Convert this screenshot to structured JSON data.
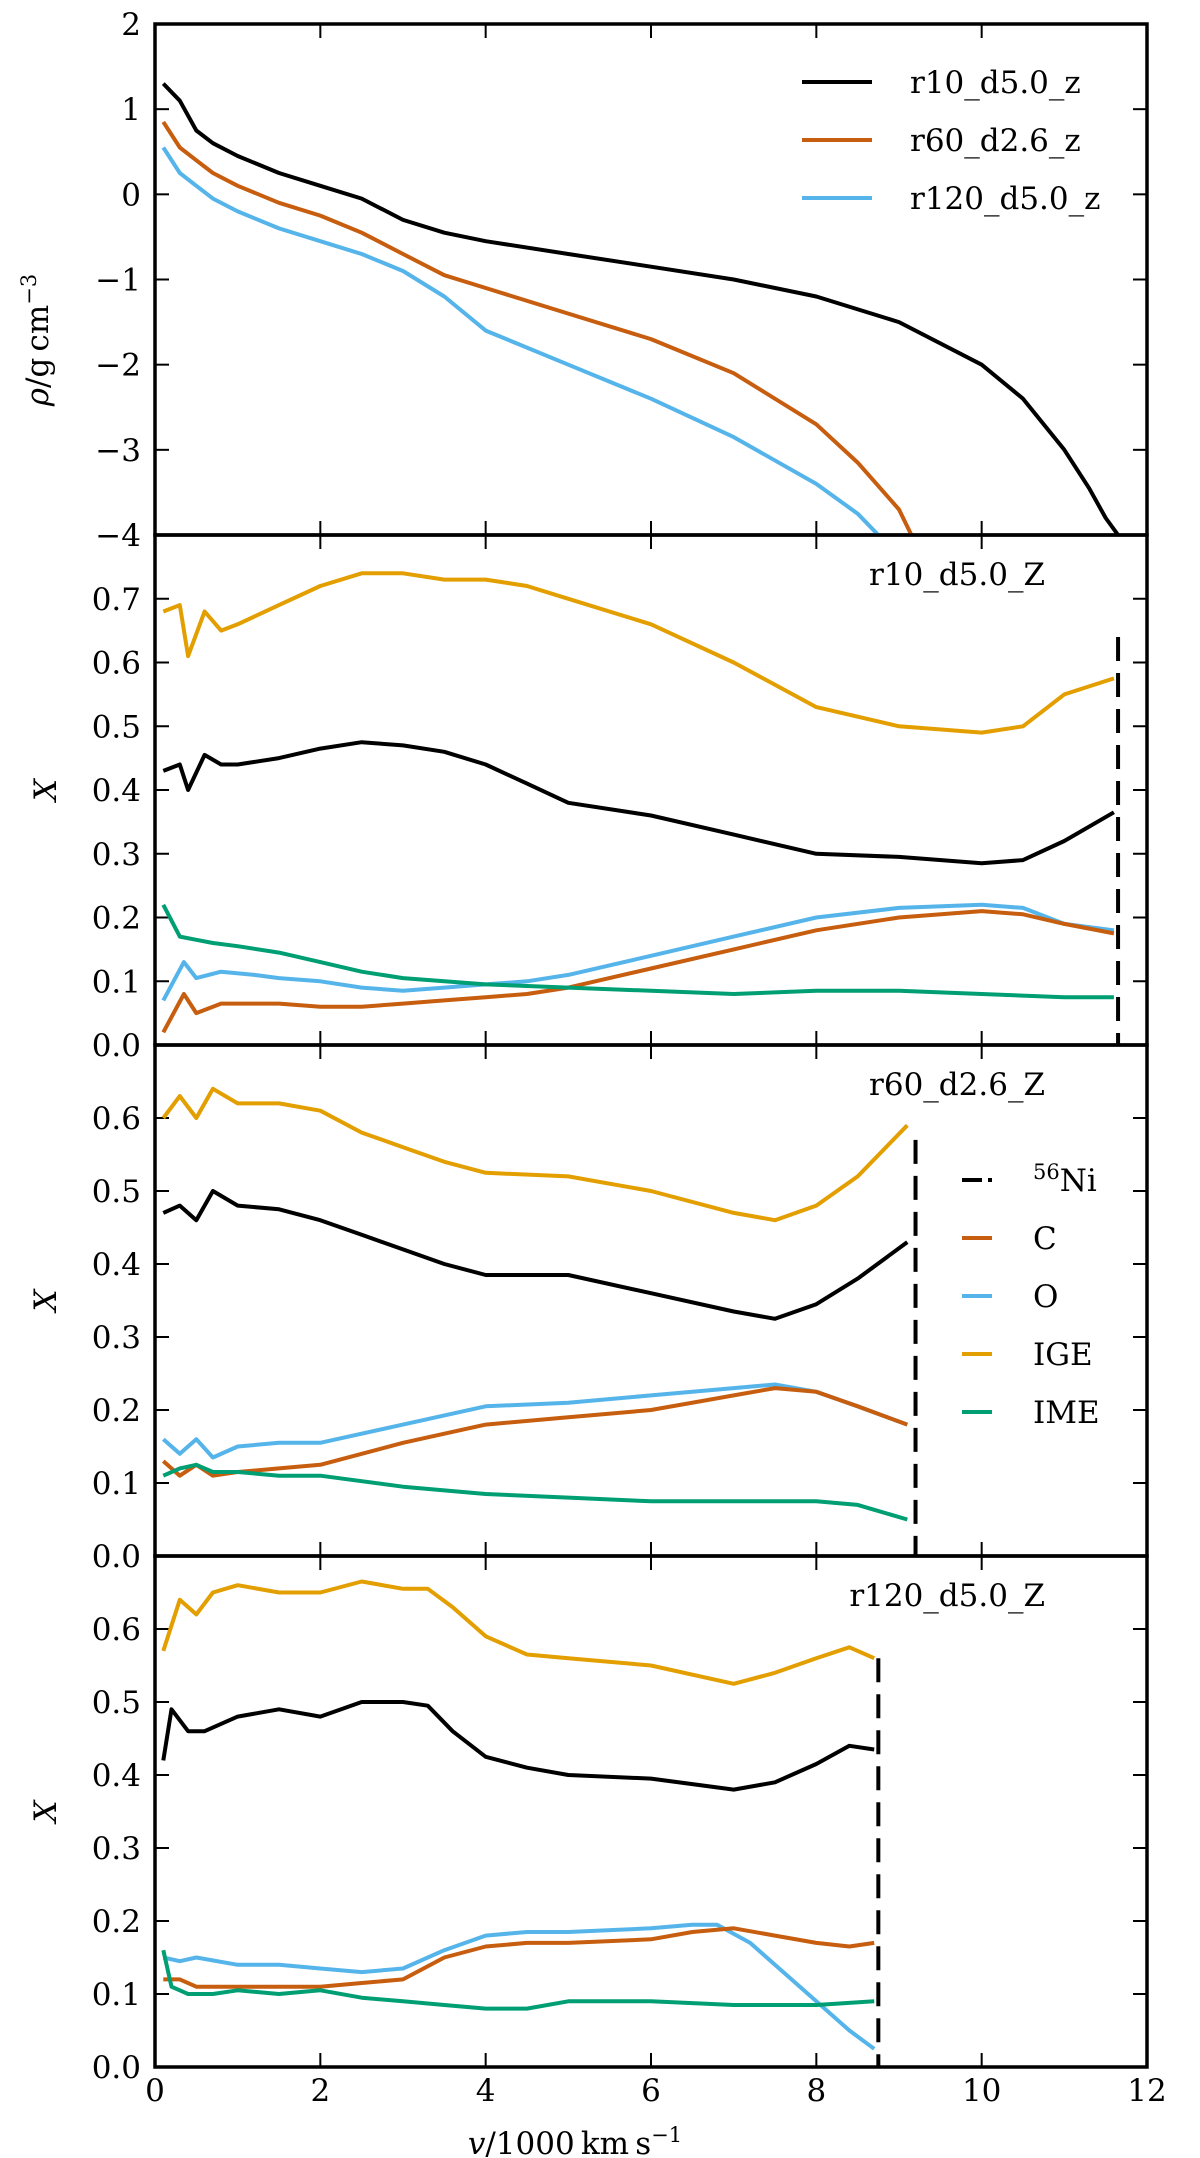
{
  "colors": {
    "black": "#000000",
    "C": "#c75d0e",
    "O": "#55b4e9",
    "IGE": "#e39e00",
    "IME": "#009e73"
  },
  "chart_data": {
    "type": "line",
    "shared_x": {
      "label": "v/1000 km s⁻¹",
      "label_prefix": "v",
      "label_mid": "/1000 km s",
      "label_sup": "−1",
      "range": [
        0,
        12
      ],
      "ticks": [
        "0",
        "2",
        "4",
        "6",
        "8",
        "10",
        "12"
      ]
    },
    "panels": [
      {
        "name": "density",
        "ylabel": "ρ/g cm⁻³",
        "ylabel_rho": "ρ",
        "ylabel_mid": "/g cm",
        "ylabel_sup": "−3",
        "ylim": [
          -4,
          2
        ],
        "yticks": [
          "2",
          "1",
          "0",
          "−1",
          "−2",
          "−3",
          "−4"
        ],
        "legend_position": "top-right",
        "series": [
          {
            "name": "r10_d5.0_z",
            "color": "#000000",
            "x": [
              0.1,
              0.3,
              0.5,
              0.7,
              1.0,
              1.5,
              2.0,
              2.5,
              3.0,
              3.5,
              4.0,
              5.0,
              6.0,
              7.0,
              8.0,
              9.0,
              10.0,
              10.5,
              11.0,
              11.3,
              11.5,
              11.65
            ],
            "y": [
              1.3,
              1.1,
              0.75,
              0.6,
              0.45,
              0.25,
              0.1,
              -0.05,
              -0.3,
              -0.45,
              -0.55,
              -0.7,
              -0.85,
              -1.0,
              -1.2,
              -1.5,
              -2.0,
              -2.4,
              -3.0,
              -3.45,
              -3.8,
              -4.0
            ]
          },
          {
            "name": "r60_d2.6_z",
            "color": "#c75d0e",
            "x": [
              0.1,
              0.3,
              0.5,
              0.7,
              1.0,
              1.5,
              2.0,
              2.5,
              3.0,
              3.5,
              4.0,
              5.0,
              6.0,
              7.0,
              8.0,
              8.5,
              9.0,
              9.15
            ],
            "y": [
              0.85,
              0.55,
              0.4,
              0.25,
              0.1,
              -0.1,
              -0.25,
              -0.45,
              -0.7,
              -0.95,
              -1.1,
              -1.4,
              -1.7,
              -2.1,
              -2.7,
              -3.15,
              -3.7,
              -4.0
            ]
          },
          {
            "name": "r120_d5.0_z",
            "color": "#55b4e9",
            "x": [
              0.1,
              0.3,
              0.5,
              0.7,
              1.0,
              1.5,
              2.0,
              2.5,
              3.0,
              3.5,
              4.0,
              5.0,
              6.0,
              7.0,
              8.0,
              8.5,
              8.75
            ],
            "y": [
              0.55,
              0.25,
              0.1,
              -0.05,
              -0.2,
              -0.4,
              -0.55,
              -0.7,
              -0.9,
              -1.2,
              -1.6,
              -2.0,
              -2.4,
              -2.85,
              -3.4,
              -3.75,
              -4.0
            ]
          }
        ]
      },
      {
        "name": "r10_d5.0_Z",
        "label": "r10_d5.0_Z",
        "ylabel": "X",
        "ylim": [
          0,
          0.8
        ],
        "yticks": [
          "0.7",
          "0.6",
          "0.5",
          "0.4",
          "0.3",
          "0.2",
          "0.1",
          "0.0"
        ],
        "ni56_x": 11.65,
        "ni56_top": 0.64,
        "series": [
          {
            "name": "IGE",
            "color": "#e39e00",
            "x": [
              0.1,
              0.3,
              0.4,
              0.6,
              0.8,
              1.0,
              1.5,
              2.0,
              2.5,
              3.0,
              3.5,
              4.0,
              4.5,
              5.0,
              6.0,
              7.0,
              8.0,
              9.0,
              10.0,
              10.5,
              11.0,
              11.6
            ],
            "y": [
              0.68,
              0.69,
              0.61,
              0.68,
              0.65,
              0.66,
              0.69,
              0.72,
              0.74,
              0.74,
              0.73,
              0.73,
              0.72,
              0.7,
              0.66,
              0.6,
              0.53,
              0.5,
              0.49,
              0.5,
              0.55,
              0.575
            ]
          },
          {
            "name": "56Ni",
            "color": "#000000",
            "x": [
              0.1,
              0.3,
              0.4,
              0.6,
              0.8,
              1.0,
              1.5,
              2.0,
              2.5,
              3.0,
              3.5,
              4.0,
              4.5,
              5.0,
              6.0,
              7.0,
              8.0,
              9.0,
              10.0,
              10.5,
              11.0,
              11.6
            ],
            "y": [
              0.43,
              0.44,
              0.4,
              0.455,
              0.44,
              0.44,
              0.45,
              0.465,
              0.475,
              0.47,
              0.46,
              0.44,
              0.41,
              0.38,
              0.36,
              0.33,
              0.3,
              0.295,
              0.285,
              0.29,
              0.32,
              0.365
            ]
          },
          {
            "name": "O",
            "color": "#55b4e9",
            "x": [
              0.1,
              0.35,
              0.5,
              0.8,
              1.2,
              1.5,
              2.0,
              2.5,
              3.0,
              3.5,
              4.0,
              4.5,
              5.0,
              6.0,
              7.0,
              8.0,
              9.0,
              10.0,
              10.5,
              11.0,
              11.6
            ],
            "y": [
              0.07,
              0.13,
              0.105,
              0.115,
              0.11,
              0.105,
              0.1,
              0.09,
              0.085,
              0.09,
              0.095,
              0.1,
              0.11,
              0.14,
              0.17,
              0.2,
              0.215,
              0.22,
              0.215,
              0.19,
              0.18
            ]
          },
          {
            "name": "C",
            "color": "#c75d0e",
            "x": [
              0.1,
              0.35,
              0.5,
              0.8,
              1.2,
              1.5,
              2.0,
              2.5,
              3.0,
              3.5,
              4.0,
              4.5,
              5.0,
              6.0,
              7.0,
              8.0,
              9.0,
              10.0,
              10.5,
              11.0,
              11.6
            ],
            "y": [
              0.02,
              0.08,
              0.05,
              0.065,
              0.065,
              0.065,
              0.06,
              0.06,
              0.065,
              0.07,
              0.075,
              0.08,
              0.09,
              0.12,
              0.15,
              0.18,
              0.2,
              0.21,
              0.205,
              0.19,
              0.175
            ]
          },
          {
            "name": "IME",
            "color": "#009e73",
            "x": [
              0.1,
              0.3,
              0.5,
              0.7,
              1.0,
              1.5,
              2.0,
              2.5,
              3.0,
              3.5,
              4.0,
              5.0,
              6.0,
              7.0,
              8.0,
              9.0,
              10.0,
              11.0,
              11.6
            ],
            "y": [
              0.22,
              0.17,
              0.165,
              0.16,
              0.155,
              0.145,
              0.13,
              0.115,
              0.105,
              0.1,
              0.095,
              0.09,
              0.085,
              0.08,
              0.085,
              0.085,
              0.08,
              0.075,
              0.075
            ]
          }
        ]
      },
      {
        "name": "r60_d2.6_Z",
        "label": "r60_d2.6_Z",
        "ylabel": "X",
        "ylim": [
          0,
          0.7
        ],
        "yticks": [
          "0.6",
          "0.5",
          "0.4",
          "0.3",
          "0.2",
          "0.1",
          "0.0"
        ],
        "ni56_x": 9.2,
        "ni56_top": 0.57,
        "legend_position": "right",
        "series": [
          {
            "name": "IGE",
            "color": "#e39e00",
            "x": [
              0.1,
              0.3,
              0.5,
              0.7,
              1.0,
              1.5,
              2.0,
              2.5,
              3.0,
              3.5,
              4.0,
              5.0,
              6.0,
              7.0,
              7.5,
              8.0,
              8.5,
              9.1
            ],
            "y": [
              0.6,
              0.63,
              0.6,
              0.64,
              0.62,
              0.62,
              0.61,
              0.58,
              0.56,
              0.54,
              0.525,
              0.52,
              0.5,
              0.47,
              0.46,
              0.48,
              0.52,
              0.59
            ]
          },
          {
            "name": "56Ni",
            "color": "#000000",
            "x": [
              0.1,
              0.3,
              0.5,
              0.7,
              1.0,
              1.5,
              2.0,
              2.5,
              3.0,
              3.5,
              4.0,
              5.0,
              6.0,
              7.0,
              7.5,
              8.0,
              8.5,
              9.1
            ],
            "y": [
              0.47,
              0.48,
              0.46,
              0.5,
              0.48,
              0.475,
              0.46,
              0.44,
              0.42,
              0.4,
              0.385,
              0.385,
              0.36,
              0.335,
              0.325,
              0.345,
              0.38,
              0.43
            ]
          },
          {
            "name": "O",
            "color": "#55b4e9",
            "x": [
              0.1,
              0.3,
              0.5,
              0.7,
              1.0,
              1.5,
              2.0,
              3.0,
              4.0,
              5.0,
              6.0,
              7.0,
              7.5,
              8.0,
              8.5,
              9.1
            ],
            "y": [
              0.16,
              0.14,
              0.16,
              0.135,
              0.15,
              0.155,
              0.155,
              0.18,
              0.205,
              0.21,
              0.22,
              0.23,
              0.235,
              0.225,
              0.205,
              0.18
            ]
          },
          {
            "name": "C",
            "color": "#c75d0e",
            "x": [
              0.1,
              0.3,
              0.5,
              0.7,
              1.0,
              1.5,
              2.0,
              3.0,
              4.0,
              5.0,
              6.0,
              7.0,
              7.5,
              8.0,
              8.5,
              9.1
            ],
            "y": [
              0.13,
              0.11,
              0.125,
              0.11,
              0.115,
              0.12,
              0.125,
              0.155,
              0.18,
              0.19,
              0.2,
              0.22,
              0.23,
              0.225,
              0.205,
              0.18
            ]
          },
          {
            "name": "IME",
            "color": "#009e73",
            "x": [
              0.1,
              0.3,
              0.5,
              0.7,
              1.0,
              1.5,
              2.0,
              3.0,
              4.0,
              5.0,
              6.0,
              7.0,
              8.0,
              8.5,
              9.1
            ],
            "y": [
              0.11,
              0.12,
              0.125,
              0.115,
              0.115,
              0.11,
              0.11,
              0.095,
              0.085,
              0.08,
              0.075,
              0.075,
              0.075,
              0.07,
              0.05
            ]
          }
        ],
        "legend": [
          {
            "key": "56Ni",
            "label_sup": "56",
            "label": "Ni",
            "color": "#000000",
            "dashed": true
          },
          {
            "key": "C",
            "label": "C",
            "color": "#c75d0e"
          },
          {
            "key": "O",
            "label": "O",
            "color": "#55b4e9"
          },
          {
            "key": "IGE",
            "label": "IGE",
            "color": "#e39e00"
          },
          {
            "key": "IME",
            "label": "IME",
            "color": "#009e73"
          }
        ]
      },
      {
        "name": "r120_d5.0_Z",
        "label": "r120_d5.0_Z",
        "ylabel": "X",
        "ylim": [
          0,
          0.7
        ],
        "yticks": [
          "0.6",
          "0.5",
          "0.4",
          "0.3",
          "0.2",
          "0.1",
          "0.0"
        ],
        "ni56_x": 8.75,
        "ni56_top": 0.56,
        "series": [
          {
            "name": "IGE",
            "color": "#e39e00",
            "x": [
              0.1,
              0.3,
              0.5,
              0.7,
              1.0,
              1.5,
              2.0,
              2.5,
              3.0,
              3.3,
              3.6,
              4.0,
              4.5,
              5.0,
              6.0,
              7.0,
              7.5,
              8.0,
              8.4,
              8.7
            ],
            "y": [
              0.57,
              0.64,
              0.62,
              0.65,
              0.66,
              0.65,
              0.65,
              0.665,
              0.655,
              0.655,
              0.63,
              0.59,
              0.565,
              0.56,
              0.55,
              0.525,
              0.54,
              0.56,
              0.575,
              0.56
            ]
          },
          {
            "name": "56Ni",
            "color": "#000000",
            "x": [
              0.1,
              0.2,
              0.4,
              0.6,
              1.0,
              1.5,
              2.0,
              2.5,
              3.0,
              3.3,
              3.6,
              4.0,
              4.5,
              5.0,
              6.0,
              7.0,
              7.5,
              8.0,
              8.4,
              8.7
            ],
            "y": [
              0.42,
              0.49,
              0.46,
              0.46,
              0.48,
              0.49,
              0.48,
              0.5,
              0.5,
              0.495,
              0.46,
              0.425,
              0.41,
              0.4,
              0.395,
              0.38,
              0.39,
              0.415,
              0.44,
              0.435
            ]
          },
          {
            "name": "O",
            "color": "#55b4e9",
            "x": [
              0.1,
              0.3,
              0.5,
              1.0,
              1.5,
              2.0,
              2.5,
              3.0,
              3.5,
              4.0,
              4.5,
              5.0,
              6.0,
              6.5,
              6.8,
              7.2,
              7.6,
              8.0,
              8.4,
              8.7
            ],
            "y": [
              0.15,
              0.145,
              0.15,
              0.14,
              0.14,
              0.135,
              0.13,
              0.135,
              0.16,
              0.18,
              0.185,
              0.185,
              0.19,
              0.195,
              0.195,
              0.17,
              0.13,
              0.09,
              0.05,
              0.025
            ]
          },
          {
            "name": "C",
            "color": "#c75d0e",
            "x": [
              0.1,
              0.3,
              0.5,
              1.0,
              1.5,
              2.0,
              2.5,
              3.0,
              3.5,
              4.0,
              4.5,
              5.0,
              6.0,
              6.5,
              7.0,
              7.5,
              8.0,
              8.4,
              8.7
            ],
            "y": [
              0.12,
              0.12,
              0.11,
              0.11,
              0.11,
              0.11,
              0.115,
              0.12,
              0.15,
              0.165,
              0.17,
              0.17,
              0.175,
              0.185,
              0.19,
              0.18,
              0.17,
              0.165,
              0.17
            ]
          },
          {
            "name": "IME",
            "color": "#009e73",
            "x": [
              0.1,
              0.2,
              0.4,
              0.7,
              1.0,
              1.5,
              2.0,
              2.5,
              3.0,
              3.5,
              4.0,
              4.5,
              5.0,
              6.0,
              7.0,
              8.0,
              8.7
            ],
            "y": [
              0.16,
              0.11,
              0.1,
              0.1,
              0.105,
              0.1,
              0.105,
              0.095,
              0.09,
              0.085,
              0.08,
              0.08,
              0.09,
              0.09,
              0.085,
              0.085,
              0.09
            ]
          }
        ]
      }
    ]
  }
}
